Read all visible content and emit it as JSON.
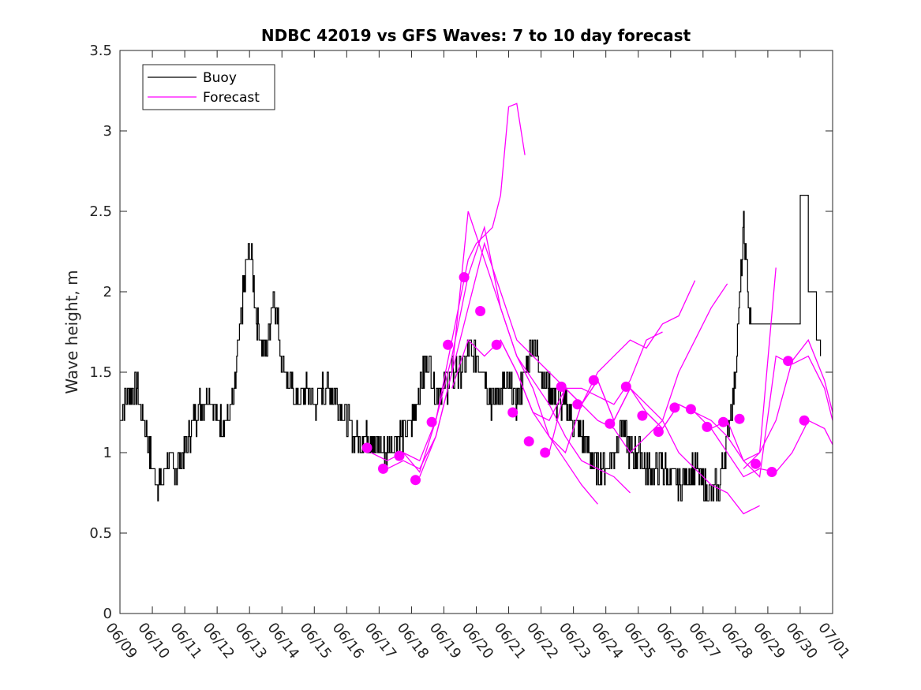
{
  "chart_data": {
    "type": "line",
    "title": "NDBC 42019 vs GFS Waves: 7 to 10 day forecast",
    "xlabel": "",
    "ylabel": "Wave height, m",
    "xlim": [
      "06/09",
      "07/01"
    ],
    "ylim": [
      0,
      3.5
    ],
    "x_ticks": [
      "06/09",
      "06/10",
      "06/11",
      "06/12",
      "06/13",
      "06/14",
      "06/15",
      "06/16",
      "06/17",
      "06/18",
      "06/19",
      "06/20",
      "06/21",
      "06/22",
      "06/23",
      "06/24",
      "06/25",
      "06/26",
      "06/27",
      "06/28",
      "06/29",
      "06/30",
      "07/01"
    ],
    "y_ticks": [
      0,
      0.5,
      1,
      1.5,
      2,
      2.5,
      3,
      3.5
    ],
    "y_tick_labels": [
      "0",
      "0.5",
      "1",
      "1.5",
      "2",
      "2.5",
      "3",
      "3.5"
    ],
    "grid": false,
    "legend": {
      "position": "top-left",
      "entries": [
        "Buoy",
        "Forecast"
      ]
    },
    "colors": {
      "buoy": "#000000",
      "forecast": "#ff00ff"
    },
    "series": [
      {
        "name": "Buoy",
        "x": [
          "06/09 00:00",
          "06/09 06:00",
          "06/09 12:00",
          "06/09 18:00",
          "06/10 00:00",
          "06/10 06:00",
          "06/10 12:00",
          "06/10 18:00",
          "06/11 00:00",
          "06/11 06:00",
          "06/11 12:00",
          "06/11 18:00",
          "06/12 00:00",
          "06/12 06:00",
          "06/12 12:00",
          "06/12 18:00",
          "06/13 00:00",
          "06/13 06:00",
          "06/13 12:00",
          "06/13 18:00",
          "06/14 00:00",
          "06/14 06:00",
          "06/14 12:00",
          "06/14 18:00",
          "06/15 00:00",
          "06/15 06:00",
          "06/15 12:00",
          "06/15 18:00",
          "06/16 00:00",
          "06/16 06:00",
          "06/16 12:00",
          "06/16 18:00",
          "06/17 00:00",
          "06/17 06:00",
          "06/17 12:00",
          "06/17 18:00",
          "06/18 00:00",
          "06/18 06:00",
          "06/18 12:00",
          "06/18 18:00",
          "06/19 00:00",
          "06/19 06:00",
          "06/19 12:00",
          "06/19 18:00",
          "06/20 00:00",
          "06/20 06:00",
          "06/20 12:00",
          "06/20 18:00",
          "06/21 00:00",
          "06/21 06:00",
          "06/21 12:00",
          "06/21 18:00",
          "06/22 00:00",
          "06/22 06:00",
          "06/22 12:00",
          "06/22 18:00",
          "06/23 00:00",
          "06/23 06:00",
          "06/23 12:00",
          "06/23 18:00",
          "06/24 00:00",
          "06/24 06:00",
          "06/24 12:00",
          "06/24 18:00",
          "06/25 00:00",
          "06/25 06:00",
          "06/25 12:00",
          "06/25 18:00",
          "06/26 00:00",
          "06/26 06:00",
          "06/26 12:00",
          "06/26 18:00",
          "06/27 00:00",
          "06/27 06:00",
          "06/27 12:00",
          "06/27 18:00",
          "06/28 00:00",
          "06/28 06:00",
          "06/28 12:00",
          "06/28 18:00",
          "06/29 00:00",
          "06/29 06:00",
          "06/29 12:00",
          "06/29 18:00",
          "06/30 00:00",
          "06/30 06:00",
          "06/30 12:00",
          "06/30 18:00",
          "07/01 00:00"
        ],
        "values": [
          1.2,
          1.4,
          1.4,
          1.2,
          0.9,
          0.8,
          0.95,
          0.9,
          1.0,
          1.2,
          1.3,
          1.4,
          1.2,
          1.2,
          1.3,
          1.9,
          2.3,
          1.8,
          1.6,
          2.0,
          1.6,
          1.4,
          1.3,
          1.4,
          1.3,
          1.4,
          1.4,
          1.3,
          1.2,
          1.1,
          1.1,
          1.1,
          1.0,
          1.0,
          1.1,
          1.1,
          1.2,
          1.4,
          1.6,
          1.4,
          1.4,
          1.5,
          1.5,
          1.6,
          1.6,
          1.5,
          1.3,
          1.4,
          1.4,
          1.3,
          1.5,
          1.7,
          1.5,
          1.4,
          1.3,
          1.3,
          1.2,
          1.1,
          1.0,
          0.9,
          0.9,
          1.0,
          1.2,
          1.0,
          1.0,
          0.9,
          0.9,
          0.9,
          0.85,
          0.8,
          0.85,
          0.9,
          0.8,
          0.75,
          0.8,
          1.1,
          1.5,
          2.4,
          1.7,
          null,
          null,
          null,
          null,
          null,
          null,
          null,
          null,
          null,
          null
        ]
      },
      {
        "name": "Forecast",
        "x": [
          "06/16 15:00",
          "06/17 03:00",
          "06/17 15:00",
          "06/18 03:00",
          "06/18 15:00",
          "06/19 03:00",
          "06/19 15:00",
          "06/20 03:00",
          "06/20 15:00",
          "06/21 03:00",
          "06/21 15:00",
          "06/22 03:00",
          "06/22 15:00",
          "06/23 03:00",
          "06/23 15:00",
          "06/24 03:00",
          "06/24 15:00",
          "06/25 03:00",
          "06/25 15:00",
          "06/26 03:00",
          "06/26 15:00",
          "06/27 03:00",
          "06/27 15:00",
          "06/28 03:00",
          "06/28 15:00",
          "06/29 03:00",
          "06/29 15:00",
          "06/30 03:00",
          "06/30 15:00"
        ],
        "values": [
          1.03,
          0.9,
          0.98,
          0.83,
          1.19,
          1.67,
          2.09,
          1.88,
          1.67,
          1.25,
          1.07,
          1.0,
          1.41,
          1.3,
          1.45,
          1.18,
          1.41,
          1.23,
          1.13,
          1.28,
          1.27,
          1.16,
          1.19,
          1.21,
          0.93,
          0.88,
          1.57,
          1.2,
          null
        ]
      }
    ],
    "forecast_traces": [
      {
        "x": [
          "06/16 18:00",
          "06/17 06:00",
          "06/17 18:00",
          "06/18 06:00",
          "06/18 18:00",
          "06/19 06:00",
          "06/19 18:00",
          "06/20 00:00",
          "06/20 12:00",
          "06/20 18:00",
          "06/21 00:00",
          "06/21 06:00",
          "06/21 12:00"
        ],
        "values": [
          1.0,
          0.95,
          1.0,
          0.95,
          1.2,
          1.7,
          2.2,
          2.3,
          2.4,
          2.6,
          3.15,
          3.17,
          2.85
        ]
      },
      {
        "x": [
          "06/17 06:00",
          "06/17 18:00",
          "06/18 06:00",
          "06/18 18:00",
          "06/19 06:00",
          "06/19 18:00",
          "06/20 06:00",
          "06/20 18:00",
          "06/21 06:00",
          "06/21 18:00",
          "06/22 06:00",
          "06/22 18:00",
          "06/23 06:00",
          "06/23 18:00"
        ],
        "values": [
          0.9,
          0.95,
          0.9,
          1.1,
          1.5,
          2.5,
          2.2,
          1.9,
          1.6,
          1.4,
          1.1,
          0.95,
          0.8,
          0.68
        ]
      },
      {
        "x": [
          "06/17 18:00",
          "06/18 06:00",
          "06/18 18:00",
          "06/19 06:00",
          "06/19 18:00",
          "06/20 06:00",
          "06/20 18:00",
          "06/21 06:00",
          "06/21 18:00",
          "06/22 06:00",
          "06/22 18:00",
          "06/23 06:00",
          "06/23 18:00",
          "06/24 06:00",
          "06/24 18:00"
        ],
        "values": [
          1.0,
          0.88,
          1.2,
          1.6,
          2.1,
          2.4,
          1.9,
          1.6,
          1.45,
          1.3,
          1.1,
          0.95,
          0.9,
          0.85,
          0.75
        ]
      },
      {
        "x": [
          "06/18 06:00",
          "06/18 18:00",
          "06/19 06:00",
          "06/19 18:00",
          "06/20 06:00",
          "06/20 18:00",
          "06/21 06:00",
          "06/21 18:00",
          "06/22 06:00",
          "06/22 18:00",
          "06/23 06:00",
          "06/23 18:00",
          "06/24 06:00",
          "06/24 18:00",
          "06/25 06:00",
          "06/25 18:00"
        ],
        "values": [
          0.85,
          1.1,
          1.5,
          1.9,
          2.3,
          2.0,
          1.7,
          1.6,
          1.5,
          1.4,
          1.4,
          1.35,
          1.3,
          1.45,
          1.7,
          1.75
        ]
      },
      {
        "x": [
          "06/19 06:00",
          "06/19 18:00",
          "06/20 06:00",
          "06/20 18:00",
          "06/21 06:00",
          "06/21 18:00",
          "06/22 06:00",
          "06/22 18:00",
          "06/23 06:00",
          "06/23 18:00",
          "06/24 06:00",
          "06/24 18:00",
          "06/25 06:00",
          "06/25 18:00",
          "06/26 06:00",
          "06/26 18:00"
        ],
        "values": [
          1.4,
          1.7,
          1.6,
          1.7,
          1.5,
          1.25,
          1.1,
          1.0,
          1.3,
          1.5,
          1.6,
          1.7,
          1.65,
          1.8,
          1.85,
          2.07
        ]
      },
      {
        "x": [
          "06/20 18:00",
          "06/21 06:00",
          "06/21 18:00",
          "06/22 06:00",
          "06/22 18:00",
          "06/23 06:00",
          "06/23 18:00",
          "06/24 06:00",
          "06/24 18:00",
          "06/25 06:00",
          "06/25 18:00",
          "06/26 06:00",
          "06/26 18:00",
          "06/27 06:00",
          "06/27 18:00"
        ],
        "values": [
          1.7,
          1.5,
          1.25,
          1.2,
          1.4,
          1.3,
          1.45,
          1.2,
          1.4,
          1.3,
          1.2,
          1.5,
          1.7,
          1.9,
          2.05
        ]
      },
      {
        "x": [
          "06/22 06:00",
          "06/22 18:00",
          "06/23 06:00",
          "06/23 18:00",
          "06/24 06:00",
          "06/24 18:00",
          "06/25 06:00",
          "06/25 18:00",
          "06/26 06:00",
          "06/26 18:00",
          "06/27 06:00",
          "06/27 18:00",
          "06/28 06:00",
          "06/28 18:00"
        ],
        "values": [
          1.0,
          1.4,
          1.3,
          1.2,
          1.15,
          1.0,
          1.1,
          1.2,
          1.0,
          0.9,
          0.8,
          0.75,
          0.62,
          0.67
        ]
      },
      {
        "x": [
          "06/23 06:00",
          "06/23 18:00",
          "06/24 06:00",
          "06/24 18:00",
          "06/25 06:00",
          "06/25 18:00",
          "06/26 06:00",
          "06/26 18:00",
          "06/27 06:00",
          "06/27 18:00",
          "06/28 06:00",
          "06/28 18:00",
          "06/29 06:00"
        ],
        "values": [
          1.3,
          1.45,
          1.2,
          1.4,
          1.25,
          1.15,
          1.3,
          1.25,
          1.2,
          1.1,
          0.95,
          1.0,
          2.15
        ]
      },
      {
        "x": [
          "06/25 06:00",
          "06/25 18:00",
          "06/26 06:00",
          "06/26 18:00",
          "06/27 06:00",
          "06/27 18:00",
          "06/28 06:00",
          "06/28 18:00",
          "06/29 06:00",
          "06/29 18:00",
          "06/30 06:00",
          "06/30 18:00",
          "07/01 00:00"
        ],
        "values": [
          1.25,
          1.15,
          1.3,
          1.25,
          1.15,
          1.2,
          0.95,
          0.85,
          1.6,
          1.55,
          1.6,
          1.4,
          1.2
        ]
      },
      {
        "x": [
          "06/27 06:00",
          "06/27 18:00",
          "06/28 06:00",
          "06/28 18:00",
          "06/29 06:00",
          "06/29 18:00",
          "06/30 06:00",
          "06/30 18:00",
          "07/01 00:00"
        ],
        "values": [
          1.15,
          1.0,
          0.85,
          0.9,
          0.88,
          1.0,
          1.2,
          1.15,
          1.05
        ]
      },
      {
        "x": [
          "06/28 06:00",
          "06/28 18:00",
          "06/29 06:00",
          "06/29 18:00",
          "06/30 06:00",
          "06/30 18:00",
          "07/01 00:00"
        ],
        "values": [
          0.9,
          1.0,
          1.2,
          1.57,
          1.7,
          1.45,
          1.25
        ]
      }
    ]
  }
}
